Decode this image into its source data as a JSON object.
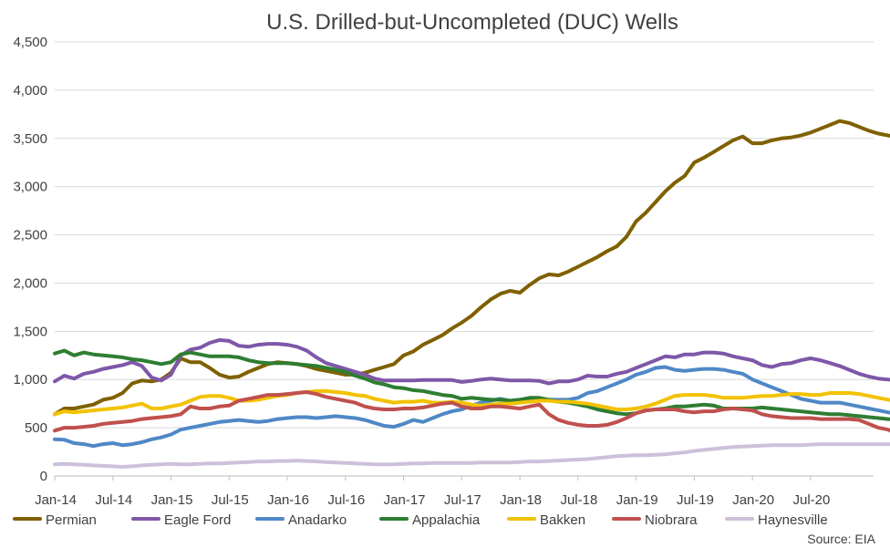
{
  "chart_data": {
    "type": "line",
    "title": "U.S. Drilled-but-Uncompleted (DUC) Wells",
    "source": "Source: EIA",
    "xlabel": "",
    "ylabel": "",
    "ylim": [
      0,
      4500
    ],
    "yticks": [
      0,
      500,
      1000,
      1500,
      2000,
      2500,
      3000,
      3500,
      4000,
      4500
    ],
    "ytick_labels": [
      "0",
      "500",
      "1,000",
      "1,500",
      "2,000",
      "2,500",
      "3,000",
      "3,500",
      "4,000",
      "4,500"
    ],
    "xtick_labels": [
      "Jan-14",
      "Jul-14",
      "Jan-15",
      "Jul-15",
      "Jan-16",
      "Jul-16",
      "Jan-17",
      "Jul-17",
      "Jan-18",
      "Jul-18",
      "Jan-19",
      "Jul-19",
      "Jan-20",
      "Jul-20"
    ],
    "x_start": "Jan-14",
    "x_end": "Dec-20",
    "grid": true,
    "legend_position": "bottom",
    "series": [
      {
        "name": "Permian",
        "color": "#7f6000",
        "values": [
          640,
          700,
          700,
          720,
          740,
          790,
          810,
          860,
          960,
          990,
          980,
          1000,
          1070,
          1220,
          1180,
          1180,
          1120,
          1050,
          1020,
          1030,
          1080,
          1120,
          1160,
          1180,
          1170,
          1160,
          1140,
          1110,
          1090,
          1070,
          1050,
          1050,
          1070,
          1100,
          1130,
          1160,
          1250,
          1290,
          1360,
          1410,
          1460,
          1530,
          1590,
          1660,
          1750,
          1830,
          1890,
          1920,
          1900,
          1980,
          2050,
          2090,
          2080,
          2120,
          2170,
          2220,
          2270,
          2330,
          2380,
          2480,
          2640,
          2730,
          2840,
          2950,
          3040,
          3110,
          3250,
          3300,
          3360,
          3420,
          3480,
          3520,
          3450,
          3450,
          3480,
          3500,
          3510,
          3530,
          3560,
          3600,
          3640,
          3680,
          3660,
          3620,
          3580,
          3550,
          3530,
          3520
        ]
      },
      {
        "name": "Eagle Ford",
        "color": "#7e57a8",
        "values": [
          980,
          1040,
          1010,
          1060,
          1080,
          1110,
          1130,
          1150,
          1180,
          1140,
          1020,
          990,
          1050,
          1250,
          1310,
          1330,
          1380,
          1410,
          1400,
          1350,
          1340,
          1360,
          1370,
          1370,
          1360,
          1340,
          1300,
          1230,
          1170,
          1140,
          1110,
          1080,
          1050,
          1010,
          990,
          990,
          990,
          990,
          995,
          995,
          995,
          995,
          975,
          985,
          1000,
          1010,
          1000,
          990,
          990,
          990,
          985,
          960,
          980,
          980,
          1000,
          1040,
          1030,
          1030,
          1060,
          1080,
          1120,
          1160,
          1200,
          1240,
          1230,
          1260,
          1260,
          1280,
          1280,
          1270,
          1240,
          1220,
          1200,
          1150,
          1130,
          1160,
          1170,
          1200,
          1220,
          1200,
          1170,
          1140,
          1100,
          1060,
          1030,
          1010,
          1000,
          990
        ]
      },
      {
        "name": "Anadarko",
        "color": "#4f88c6",
        "values": [
          380,
          375,
          340,
          330,
          310,
          330,
          340,
          320,
          330,
          350,
          380,
          400,
          430,
          480,
          500,
          520,
          540,
          560,
          570,
          580,
          570,
          560,
          570,
          590,
          600,
          610,
          610,
          600,
          610,
          620,
          610,
          600,
          580,
          550,
          520,
          510,
          540,
          580,
          560,
          600,
          640,
          670,
          690,
          730,
          760,
          780,
          800,
          780,
          790,
          800,
          800,
          790,
          790,
          790,
          810,
          860,
          880,
          920,
          960,
          1000,
          1050,
          1080,
          1120,
          1130,
          1100,
          1090,
          1100,
          1110,
          1110,
          1100,
          1080,
          1060,
          1000,
          960,
          920,
          880,
          840,
          800,
          780,
          760,
          760,
          760,
          740,
          720,
          700,
          680,
          660,
          640
        ]
      },
      {
        "name": "Appalachia",
        "color": "#2e7d32",
        "values": [
          1270,
          1300,
          1250,
          1280,
          1260,
          1250,
          1240,
          1230,
          1210,
          1200,
          1180,
          1160,
          1180,
          1260,
          1280,
          1260,
          1240,
          1240,
          1240,
          1230,
          1200,
          1180,
          1170,
          1170,
          1170,
          1160,
          1150,
          1140,
          1120,
          1100,
          1080,
          1040,
          1010,
          970,
          950,
          920,
          910,
          890,
          880,
          860,
          840,
          830,
          800,
          810,
          800,
          790,
          790,
          780,
          790,
          810,
          810,
          790,
          770,
          760,
          740,
          720,
          690,
          670,
          650,
          640,
          650,
          680,
          690,
          700,
          720,
          720,
          730,
          740,
          730,
          700,
          700,
          700,
          700,
          710,
          700,
          690,
          680,
          670,
          660,
          650,
          640,
          640,
          630,
          620,
          610,
          600,
          590,
          580
        ]
      },
      {
        "name": "Bakken",
        "color": "#f2c200",
        "values": [
          640,
          670,
          660,
          670,
          680,
          690,
          700,
          710,
          730,
          750,
          700,
          700,
          720,
          740,
          780,
          820,
          830,
          830,
          810,
          780,
          780,
          790,
          810,
          830,
          840,
          860,
          870,
          880,
          880,
          870,
          860,
          840,
          830,
          800,
          780,
          760,
          770,
          770,
          780,
          760,
          760,
          770,
          760,
          740,
          730,
          740,
          750,
          750,
          760,
          770,
          780,
          780,
          770,
          770,
          760,
          750,
          730,
          710,
          690,
          690,
          700,
          720,
          750,
          790,
          830,
          840,
          840,
          840,
          830,
          810,
          810,
          810,
          820,
          830,
          830,
          840,
          850,
          850,
          840,
          840,
          860,
          860,
          860,
          850,
          830,
          810,
          790,
          780
        ]
      },
      {
        "name": "Niobrara",
        "color": "#c0504d",
        "values": [
          470,
          500,
          500,
          510,
          520,
          540,
          550,
          560,
          570,
          590,
          600,
          610,
          620,
          640,
          720,
          700,
          700,
          720,
          730,
          780,
          800,
          820,
          840,
          840,
          850,
          860,
          870,
          850,
          820,
          800,
          780,
          760,
          720,
          700,
          690,
          690,
          700,
          700,
          710,
          730,
          750,
          760,
          720,
          700,
          700,
          720,
          720,
          710,
          700,
          720,
          740,
          640,
          580,
          550,
          530,
          520,
          520,
          530,
          560,
          600,
          650,
          680,
          690,
          690,
          690,
          670,
          660,
          670,
          670,
          690,
          700,
          690,
          680,
          640,
          620,
          610,
          600,
          600,
          600,
          590,
          590,
          590,
          590,
          580,
          540,
          500,
          480,
          440
        ]
      },
      {
        "name": "Haynesville",
        "color": "#ccc0da",
        "values": [
          120,
          125,
          120,
          115,
          110,
          105,
          100,
          95,
          100,
          110,
          115,
          120,
          125,
          120,
          120,
          125,
          130,
          130,
          135,
          140,
          145,
          150,
          150,
          155,
          155,
          160,
          155,
          150,
          145,
          140,
          135,
          130,
          125,
          120,
          120,
          120,
          125,
          130,
          130,
          135,
          135,
          135,
          135,
          135,
          140,
          140,
          140,
          140,
          145,
          150,
          150,
          155,
          160,
          165,
          170,
          175,
          185,
          195,
          205,
          210,
          215,
          215,
          220,
          225,
          235,
          245,
          260,
          270,
          280,
          290,
          300,
          305,
          310,
          315,
          320,
          320,
          320,
          320,
          325,
          330,
          330,
          330,
          330,
          330,
          330,
          330,
          330,
          330
        ]
      }
    ]
  }
}
